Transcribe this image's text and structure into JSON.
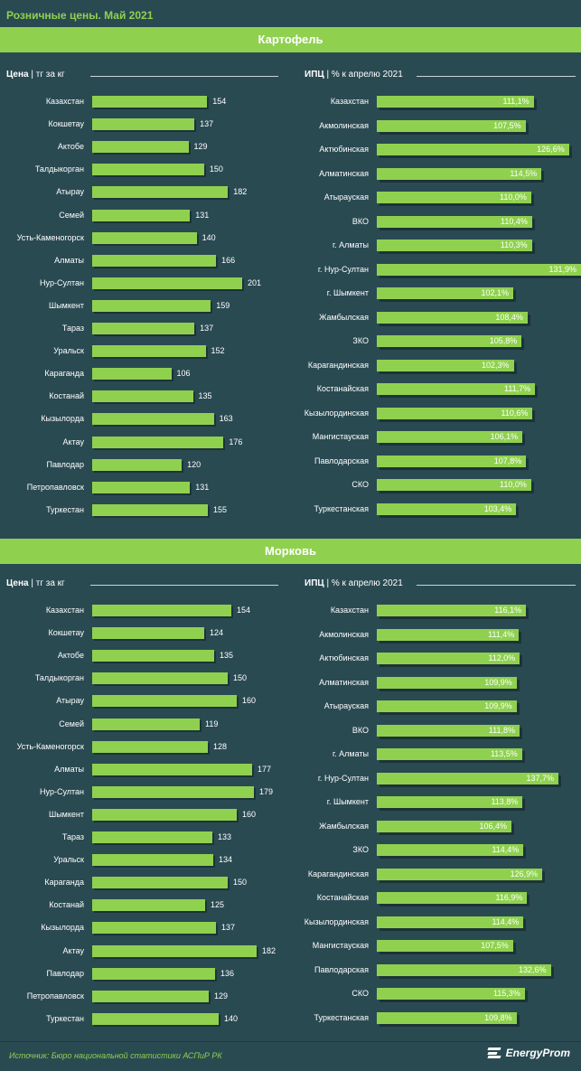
{
  "header": {
    "title": "Розничные цены. Май 2021"
  },
  "footer": {
    "source": "Источник: Бюро национальной  статистики АСПиР РК",
    "logo": "EnergyProm"
  },
  "colors": {
    "background": "#2a4a52",
    "accent": "#8fd14f",
    "shadow": "#1c3338"
  },
  "sections": [
    {
      "title": "Картофель",
      "price_label_main": "Цена",
      "price_label_unit": " | тг за кг",
      "ipc_label_main": "ИПЦ",
      "ipc_label_unit": " | % к апрелю 2021"
    },
    {
      "title": "Морковь",
      "price_label_main": "Цена",
      "price_label_unit": " | тг за кг",
      "ipc_label_main": "ИПЦ",
      "ipc_label_unit": " | % к апрелю 2021"
    }
  ],
  "chart_data": [
    {
      "type": "bar",
      "orientation": "horizontal",
      "title": "Картофель",
      "xlabel": "Цена | тг за кг",
      "categories": [
        "Казахстан",
        "Кокшетау",
        "Актобе",
        "Талдыкорган",
        "Атырау",
        "Семей",
        "Усть-Каменогорск",
        "Алматы",
        "Нур-Султан",
        "Шымкент",
        "Тараз",
        "Уральск",
        "Караганда",
        "Костанай",
        "Кызылорда",
        "Актау",
        "Павлодар",
        "Петропавловск",
        "Туркестан"
      ],
      "values": [
        154,
        137,
        129,
        150,
        182,
        131,
        140,
        166,
        201,
        159,
        137,
        152,
        106,
        135,
        163,
        176,
        120,
        131,
        155
      ],
      "value_labels": [
        "154",
        "137",
        "129",
        "150",
        "182",
        "131",
        "140",
        "166",
        "201",
        "159",
        "137",
        "152",
        "106",
        "135",
        "163",
        "176",
        "120",
        "131",
        "155"
      ]
    },
    {
      "type": "bar",
      "orientation": "horizontal",
      "title": "Картофель",
      "xlabel": "ИПЦ | % к апрелю 2021",
      "categories": [
        "Казахстан",
        "Акмолинская",
        "Актюбинская",
        "Алматинская",
        "Атырауская",
        "ВКО",
        "г. Алматы",
        "г. Нур-Султан",
        "г. Шымкент",
        "Жамбылская",
        "ЗКО",
        "Карагандинская",
        "Костанайская",
        "Кызылординская",
        "Мангистауская",
        "Павлодарская",
        "СКО",
        "Туркестанская"
      ],
      "values": [
        111.1,
        107.5,
        126.6,
        114.5,
        110.0,
        110.4,
        110.3,
        131.9,
        102.1,
        108.4,
        105.8,
        102.3,
        111.7,
        110.6,
        106.1,
        107.8,
        110.0,
        103.4
      ],
      "value_labels": [
        "111,1%",
        "107,5%",
        "126,6%",
        "114,5%",
        "110,0%",
        "110,4%",
        "110,3%",
        "131,9%",
        "102,1%",
        "108,4%",
        "105,8%",
        "102,3%",
        "111,7%",
        "110,6%",
        "106,1%",
        "107,8%",
        "110,0%",
        "103,4%"
      ]
    },
    {
      "type": "bar",
      "orientation": "horizontal",
      "title": "Морковь",
      "xlabel": "Цена | тг за кг",
      "categories": [
        "Казахстан",
        "Кокшетау",
        "Актобе",
        "Талдыкорган",
        "Атырау",
        "Семей",
        "Усть-Каменогорск",
        "Алматы",
        "Нур-Султан",
        "Шымкент",
        "Тараз",
        "Уральск",
        "Караганда",
        "Костанай",
        "Кызылорда",
        "Актау",
        "Павлодар",
        "Петропавловск",
        "Туркестан"
      ],
      "values": [
        154,
        124,
        135,
        150,
        160,
        119,
        128,
        177,
        179,
        160,
        133,
        134,
        150,
        125,
        137,
        182,
        136,
        129,
        140
      ],
      "value_labels": [
        "154",
        "124",
        "135",
        "150",
        "160",
        "119",
        "128",
        "177",
        "179",
        "160",
        "133",
        "134",
        "150",
        "125",
        "137",
        "182",
        "136",
        "129",
        "140"
      ]
    },
    {
      "type": "bar",
      "orientation": "horizontal",
      "title": "Морковь",
      "xlabel": "ИПЦ | % к апрелю 2021",
      "categories": [
        "Казахстан",
        "Акмолинская",
        "Актюбинская",
        "Алматинская",
        "Атырауская",
        "ВКО",
        "г. Алматы",
        "г. Нур-Султан",
        "г. Шымкент",
        "Жамбылская",
        "ЗКО",
        "Карагандинская",
        "Костанайская",
        "Кызылординская",
        "Мангистауская",
        "Павлодарская",
        "СКО",
        "Туркестанская"
      ],
      "values": [
        116.1,
        111.4,
        112.0,
        109.9,
        109.9,
        111.8,
        113.5,
        137.7,
        113.8,
        106.4,
        114.4,
        126.9,
        116.9,
        114.4,
        107.5,
        132.6,
        115.3,
        109.8
      ],
      "value_labels": [
        "116,1%",
        "111,4%",
        "112,0%",
        "109,9%",
        "109,9%",
        "111,8%",
        "113,5%",
        "137,7%",
        "113,8%",
        "106,4%",
        "114,4%",
        "126,9%",
        "116,9%",
        "114,4%",
        "107,5%",
        "132,6%",
        "115,3%",
        "109,8%"
      ]
    }
  ]
}
